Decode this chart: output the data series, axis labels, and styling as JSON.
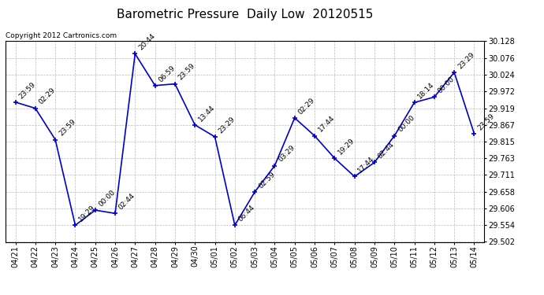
{
  "title": "Barometric Pressure  Daily Low  20120515",
  "copyright": "Copyright 2012 Cartronics.com",
  "x_labels": [
    "04/21",
    "04/22",
    "04/23",
    "04/24",
    "04/25",
    "04/26",
    "04/27",
    "04/28",
    "04/29",
    "04/30",
    "05/01",
    "05/02",
    "05/03",
    "05/04",
    "05/05",
    "05/06",
    "05/07",
    "05/08",
    "05/09",
    "05/10",
    "05/11",
    "05/12",
    "05/13",
    "05/14"
  ],
  "data_points": [
    {
      "date": "04/21",
      "time": "23:59",
      "value": 29.938
    },
    {
      "date": "04/22",
      "time": "02:29",
      "value": 29.919
    },
    {
      "date": "04/23",
      "time": "23:59",
      "value": 29.821
    },
    {
      "date": "04/24",
      "time": "19:29",
      "value": 29.554
    },
    {
      "date": "04/25",
      "time": "00:00",
      "value": 29.601
    },
    {
      "date": "04/26",
      "time": "02:44",
      "value": 29.591
    },
    {
      "date": "04/27",
      "time": "20:44",
      "value": 30.089
    },
    {
      "date": "04/28",
      "time": "06:59",
      "value": 29.99
    },
    {
      "date": "04/29",
      "time": "23:59",
      "value": 29.995
    },
    {
      "date": "04/30",
      "time": "13:44",
      "value": 29.867
    },
    {
      "date": "05/01",
      "time": "23:29",
      "value": 29.83
    },
    {
      "date": "05/02",
      "time": "06:44",
      "value": 29.554
    },
    {
      "date": "05/03",
      "time": "02:59",
      "value": 29.658
    },
    {
      "date": "05/04",
      "time": "03:29",
      "value": 29.74
    },
    {
      "date": "05/05",
      "time": "02:29",
      "value": 29.889
    },
    {
      "date": "05/06",
      "time": "17:44",
      "value": 29.833
    },
    {
      "date": "05/07",
      "time": "19:29",
      "value": 29.763
    },
    {
      "date": "05/08",
      "time": "17:44",
      "value": 29.706
    },
    {
      "date": "05/09",
      "time": "02:44",
      "value": 29.75
    },
    {
      "date": "05/10",
      "time": "00:00",
      "value": 29.833
    },
    {
      "date": "05/11",
      "time": "18:14",
      "value": 29.937
    },
    {
      "date": "05/12",
      "time": "00:00",
      "value": 29.954
    },
    {
      "date": "05/13",
      "time": "23:29",
      "value": 30.031
    },
    {
      "date": "05/14",
      "time": "23:59",
      "value": 29.84
    }
  ],
  "ylim": [
    29.502,
    30.128
  ],
  "yticks": [
    29.502,
    29.554,
    29.606,
    29.658,
    29.711,
    29.763,
    29.815,
    29.867,
    29.919,
    29.972,
    30.024,
    30.076,
    30.128
  ],
  "line_color": "#0000cc",
  "marker": "s",
  "marker_size": 2.5,
  "background_color": "#ffffff",
  "grid_color": "#bbbbbb",
  "title_fontsize": 11,
  "tick_fontsize": 7,
  "annot_fontsize": 6.5
}
